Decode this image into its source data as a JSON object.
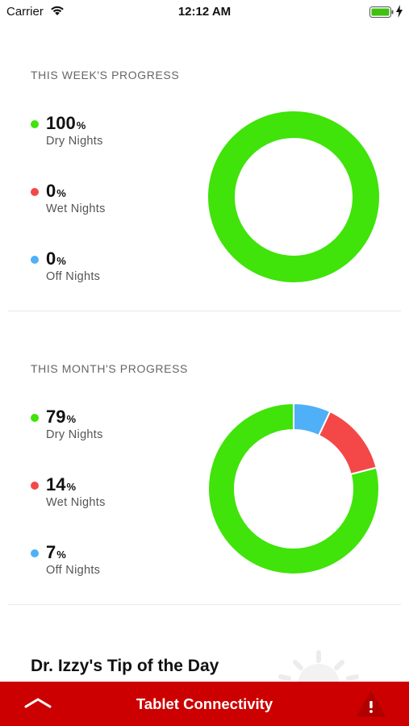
{
  "status_bar": {
    "carrier": "Carrier",
    "time": "12:12 AM"
  },
  "week": {
    "title": "THIS WEEK'S PROGRESS",
    "items": [
      {
        "value": "100",
        "unit": "%",
        "label": "Dry Nights",
        "color": "#40e30a"
      },
      {
        "value": "0",
        "unit": "%",
        "label": "Wet Nights",
        "color": "#f44848"
      },
      {
        "value": "0",
        "unit": "%",
        "label": "Off Nights",
        "color": "#4fb0f7"
      }
    ]
  },
  "month": {
    "title": "THIS MONTH'S PROGRESS",
    "items": [
      {
        "value": "79",
        "unit": "%",
        "label": "Dry Nights",
        "color": "#40e30a"
      },
      {
        "value": "14",
        "unit": "%",
        "label": "Wet Nights",
        "color": "#f44848"
      },
      {
        "value": "7",
        "unit": "%",
        "label": "Off Nights",
        "color": "#4fb0f7"
      }
    ]
  },
  "tip": {
    "title": "Dr. Izzy's Tip of the Day"
  },
  "bottom_bar": {
    "title": "Tablet Connectivity",
    "color": "#cc0000"
  },
  "chart_data": [
    {
      "type": "pie",
      "title": "THIS WEEK'S PROGRESS",
      "categories": [
        "Dry Nights",
        "Wet Nights",
        "Off Nights"
      ],
      "values": [
        100,
        0,
        0
      ],
      "colors": [
        "#40e30a",
        "#f44848",
        "#4fb0f7"
      ]
    },
    {
      "type": "pie",
      "title": "THIS MONTH'S PROGRESS",
      "categories": [
        "Dry Nights",
        "Wet Nights",
        "Off Nights"
      ],
      "values": [
        79,
        14,
        7
      ],
      "colors": [
        "#40e30a",
        "#f44848",
        "#4fb0f7"
      ]
    }
  ]
}
